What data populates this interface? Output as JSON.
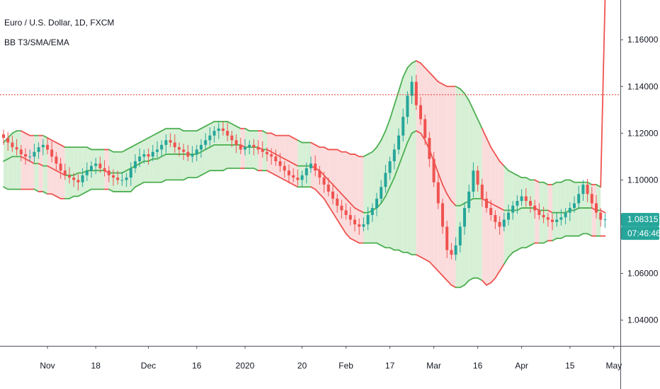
{
  "header": {
    "symbol": "Euro / U.S. Dollar, 1D, FXCM",
    "indicator": "BB T3/SMA/EMA"
  },
  "colors": {
    "up": "#26a69a",
    "down": "#ef5350",
    "band_up": "#4caf50",
    "band_down": "#ef5350",
    "fill_up": "#d6f0d6",
    "fill_down": "#fbdcdc",
    "price_badge": "#26a69a",
    "hline": "#e53935"
  },
  "price_badge": {
    "price": "1.08315",
    "countdown": "07:46:46",
    "value": 1.08315
  },
  "chart_data": {
    "type": "candlestick",
    "title": "Euro / U.S. Dollar, 1D, FXCM",
    "ylim": [
      1.029,
      1.177
    ],
    "y_ticks": [
      "1.16000",
      "1.14000",
      "1.12000",
      "1.10000",
      "1.06000",
      "1.04000"
    ],
    "y_tick_values": [
      1.16,
      1.14,
      1.12,
      1.1,
      1.06,
      1.04
    ],
    "x_ticks": [
      "Nov",
      "18",
      "Dec",
      "16",
      "2020",
      "20",
      "Feb",
      "17",
      "Mar",
      "16",
      "Apr",
      "15",
      "May"
    ],
    "x_tick_index": [
      10,
      21,
      33,
      44,
      55,
      68,
      78,
      88,
      98,
      108,
      118,
      129,
      139
    ],
    "horizontal_line": 1.1365,
    "close": [
      1.118,
      1.116,
      1.114,
      1.113,
      1.111,
      1.11,
      1.11,
      1.112,
      1.114,
      1.115,
      1.113,
      1.11,
      1.107,
      1.104,
      1.102,
      1.101,
      1.1,
      1.099,
      1.102,
      1.104,
      1.106,
      1.107,
      1.105,
      1.104,
      1.102,
      1.101,
      1.1,
      1.1,
      1.101,
      1.105,
      1.108,
      1.11,
      1.111,
      1.11,
      1.112,
      1.113,
      1.115,
      1.117,
      1.116,
      1.114,
      1.113,
      1.112,
      1.11,
      1.111,
      1.113,
      1.115,
      1.117,
      1.119,
      1.121,
      1.122,
      1.121,
      1.119,
      1.117,
      1.115,
      1.113,
      1.114,
      1.115,
      1.114,
      1.113,
      1.112,
      1.111,
      1.11,
      1.108,
      1.106,
      1.104,
      1.102,
      1.101,
      1.1,
      1.102,
      1.105,
      1.107,
      1.104,
      1.101,
      1.098,
      1.095,
      1.092,
      1.089,
      1.087,
      1.085,
      1.083,
      1.081,
      1.08,
      1.081,
      1.085,
      1.088,
      1.092,
      1.097,
      1.103,
      1.108,
      1.113,
      1.119,
      1.127,
      1.136,
      1.142,
      1.132,
      1.126,
      1.118,
      1.109,
      1.099,
      1.09,
      1.08,
      1.07,
      1.068,
      1.072,
      1.08,
      1.088,
      1.095,
      1.104,
      1.098,
      1.092,
      1.088,
      1.085,
      1.082,
      1.08,
      1.083,
      1.086,
      1.089,
      1.091,
      1.093,
      1.091,
      1.089,
      1.087,
      1.085,
      1.084,
      1.083,
      1.082,
      1.083,
      1.084,
      1.086,
      1.088,
      1.09,
      1.094,
      1.098,
      1.094,
      1.09,
      1.086,
      1.083,
      1.08315
    ],
    "bb_upper": [
      1.116,
      1.118,
      1.12,
      1.121,
      1.121,
      1.12,
      1.119,
      1.119,
      1.119,
      1.119,
      1.118,
      1.117,
      1.116,
      1.115,
      1.114,
      1.114,
      1.114,
      1.114,
      1.114,
      1.114,
      1.113,
      1.113,
      1.113,
      1.113,
      1.113,
      1.112,
      1.112,
      1.112,
      1.113,
      1.114,
      1.115,
      1.116,
      1.117,
      1.118,
      1.119,
      1.12,
      1.121,
      1.122,
      1.122,
      1.122,
      1.122,
      1.121,
      1.121,
      1.121,
      1.121,
      1.122,
      1.123,
      1.124,
      1.125,
      1.125,
      1.125,
      1.125,
      1.124,
      1.123,
      1.122,
      1.122,
      1.121,
      1.121,
      1.121,
      1.121,
      1.12,
      1.12,
      1.119,
      1.119,
      1.119,
      1.119,
      1.118,
      1.117,
      1.116,
      1.116,
      1.116,
      1.115,
      1.114,
      1.114,
      1.113,
      1.113,
      1.113,
      1.112,
      1.112,
      1.111,
      1.111,
      1.11,
      1.11,
      1.111,
      1.112,
      1.114,
      1.117,
      1.121,
      1.126,
      1.132,
      1.138,
      1.144,
      1.148,
      1.15,
      1.151,
      1.15,
      1.148,
      1.146,
      1.144,
      1.142,
      1.141,
      1.14,
      1.14,
      1.14,
      1.139,
      1.137,
      1.134,
      1.13,
      1.126,
      1.122,
      1.118,
      1.114,
      1.111,
      1.108,
      1.106,
      1.104,
      1.103,
      1.102,
      1.101,
      1.101,
      1.1,
      1.1,
      1.099,
      1.099,
      1.098,
      1.098,
      1.099,
      1.099,
      1.1,
      1.1,
      1.099,
      1.099,
      1.099,
      1.099,
      1.098,
      1.098,
      1.097
    ],
    "bb_basis": [
      1.108,
      1.109,
      1.11,
      1.11,
      1.11,
      1.109,
      1.108,
      1.107,
      1.107,
      1.106,
      1.106,
      1.105,
      1.104,
      1.103,
      1.102,
      1.102,
      1.102,
      1.103,
      1.103,
      1.104,
      1.104,
      1.104,
      1.104,
      1.104,
      1.103,
      1.103,
      1.103,
      1.103,
      1.104,
      1.105,
      1.106,
      1.107,
      1.108,
      1.108,
      1.109,
      1.109,
      1.11,
      1.111,
      1.111,
      1.111,
      1.111,
      1.111,
      1.111,
      1.111,
      1.111,
      1.112,
      1.113,
      1.114,
      1.115,
      1.115,
      1.115,
      1.115,
      1.115,
      1.115,
      1.115,
      1.114,
      1.114,
      1.114,
      1.114,
      1.113,
      1.113,
      1.112,
      1.111,
      1.11,
      1.109,
      1.108,
      1.107,
      1.106,
      1.106,
      1.106,
      1.106,
      1.105,
      1.104,
      1.102,
      1.1,
      1.098,
      1.096,
      1.094,
      1.092,
      1.09,
      1.088,
      1.087,
      1.086,
      1.086,
      1.087,
      1.088,
      1.09,
      1.093,
      1.097,
      1.101,
      1.106,
      1.111,
      1.116,
      1.12,
      1.121,
      1.12,
      1.117,
      1.113,
      1.108,
      1.103,
      1.098,
      1.094,
      1.091,
      1.089,
      1.089,
      1.09,
      1.091,
      1.092,
      1.092,
      1.092,
      1.091,
      1.09,
      1.089,
      1.088,
      1.087,
      1.087,
      1.087,
      1.087,
      1.088,
      1.088,
      1.088,
      1.088,
      1.087,
      1.087,
      1.087,
      1.086,
      1.086,
      1.086,
      1.086,
      1.087,
      1.087,
      1.088,
      1.088,
      1.088,
      1.088,
      1.087,
      1.087,
      1.086,
      1.086
    ],
    "bb_lower": [
      1.097,
      1.096,
      1.096,
      1.096,
      1.096,
      1.096,
      1.096,
      1.096,
      1.095,
      1.095,
      1.094,
      1.094,
      1.093,
      1.092,
      1.092,
      1.092,
      1.093,
      1.093,
      1.094,
      1.095,
      1.096,
      1.096,
      1.096,
      1.096,
      1.096,
      1.095,
      1.095,
      1.095,
      1.095,
      1.095,
      1.097,
      1.098,
      1.099,
      1.099,
      1.099,
      1.099,
      1.099,
      1.1,
      1.1,
      1.1,
      1.1,
      1.1,
      1.101,
      1.101,
      1.101,
      1.102,
      1.103,
      1.104,
      1.104,
      1.104,
      1.104,
      1.105,
      1.105,
      1.105,
      1.105,
      1.105,
      1.105,
      1.105,
      1.104,
      1.104,
      1.104,
      1.103,
      1.102,
      1.101,
      1.1,
      1.099,
      1.098,
      1.097,
      1.097,
      1.097,
      1.097,
      1.096,
      1.094,
      1.092,
      1.089,
      1.086,
      1.083,
      1.08,
      1.077,
      1.075,
      1.074,
      1.073,
      1.073,
      1.073,
      1.073,
      1.073,
      1.072,
      1.071,
      1.071,
      1.07,
      1.07,
      1.069,
      1.069,
      1.068,
      1.068,
      1.067,
      1.066,
      1.065,
      1.063,
      1.061,
      1.059,
      1.057,
      1.055,
      1.054,
      1.054,
      1.055,
      1.057,
      1.058,
      1.058,
      1.057,
      1.055,
      1.056,
      1.058,
      1.061,
      1.064,
      1.067,
      1.069,
      1.07,
      1.071,
      1.071,
      1.072,
      1.073,
      1.073,
      1.073,
      1.074,
      1.074,
      1.075,
      1.075,
      1.076,
      1.076,
      1.076,
      1.076,
      1.077,
      1.077,
      1.076,
      1.076,
      1.076,
      1.076,
      1.075
    ]
  }
}
